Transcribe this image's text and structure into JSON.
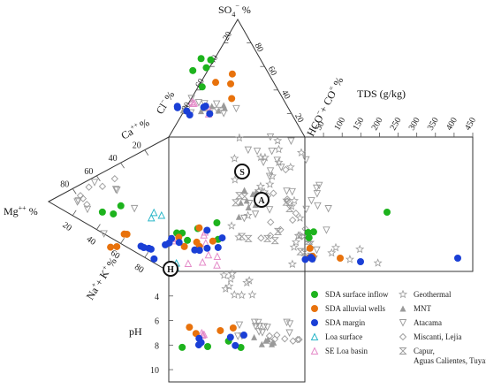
{
  "chart_data": {
    "type": "scatter",
    "title": "",
    "apex_anion_label": "SO",
    "apex_anion_sup": "4",
    "apex_anion_charge": "−",
    "apex_anion_unit": "%",
    "cl_label": "Cl",
    "cl_charge": "−",
    "cl_unit": "%",
    "hco3_label": "HCO",
    "hco3_charge": "−",
    "hco3_label2": "+ CO",
    "hco3_charge2": "=",
    "hco3_unit": "%",
    "ca_label": "Ca",
    "ca_charge": "++",
    "ca_unit": "%",
    "mg_label": "Mg",
    "mg_charge": "++",
    "mg_unit": "%",
    "nak_label": "Na",
    "nak_charge": "+",
    "nak_label2": "+ K",
    "nak_charge2": "+",
    "nak_unit": "%",
    "tds_label": "TDS (g/kg)",
    "ph_label": "pH",
    "tds_ticks": [
      "50",
      "100",
      "150",
      "200",
      "250",
      "300",
      "350",
      "400",
      "450"
    ],
    "ph_ticks": [
      "4",
      "6",
      "8",
      "10"
    ],
    "diamond_ticks_so4": [
      "20",
      "40",
      "60",
      "80"
    ],
    "diamond_ticks_hco3": [
      "20",
      "40",
      "60",
      "80"
    ],
    "cation_ticks_ca": [
      "20",
      "40",
      "60",
      "80"
    ],
    "cation_ticks_mg": [
      "20",
      "40",
      "60",
      "80"
    ],
    "cation_ticks_na": [
      "20",
      "40",
      "60",
      "80"
    ],
    "markers": {
      "S": "S",
      "A": "A",
      "H": "H"
    },
    "legend": [
      {
        "label": "SDA surface inflow",
        "symbol": "circle",
        "color": "#1db31d"
      },
      {
        "label": "SDA alluvial wells",
        "symbol": "circle",
        "color": "#e8720c"
      },
      {
        "label": "SDA margin",
        "symbol": "circle",
        "color": "#1a3fd6"
      },
      {
        "label": "Loa surface",
        "symbol": "triangle-open",
        "color": "#29b6c8"
      },
      {
        "label": "SE Loa basin",
        "symbol": "triangle-open",
        "color": "#e48ac8"
      },
      {
        "label": "Geothermal",
        "symbol": "star-open",
        "color": "#9a9a9a"
      },
      {
        "label": "MNT",
        "symbol": "triangle-filled",
        "color": "#9a9a9a"
      },
      {
        "label": "Atacama",
        "symbol": "triangle-down-open",
        "color": "#9a9a9a"
      },
      {
        "label": "Miscanti, Lejia",
        "symbol": "diamond-open",
        "color": "#9a9a9a"
      },
      {
        "label": "Capur, Aguas Calientes, Tuyaito",
        "symbol": "hourglass-open",
        "color": "#9a9a9a"
      }
    ],
    "tds_range": [
      0,
      450
    ],
    "ph_range": [
      2,
      11
    ]
  }
}
